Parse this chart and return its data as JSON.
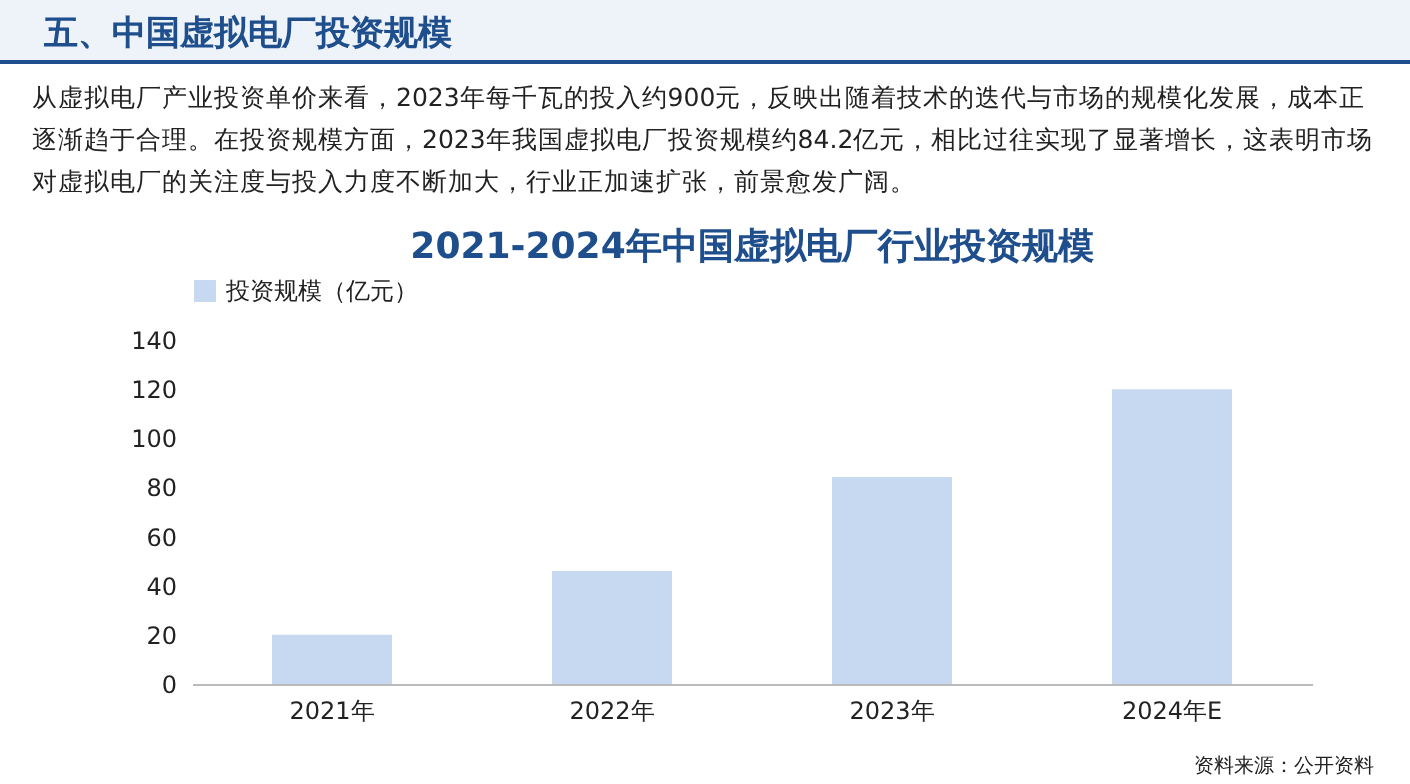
{
  "chart_data": {
    "type": "bar",
    "title": "2021-2024年中国虚拟电厂行业投资规模",
    "annotations": [
      "五、中国虚拟电厂投资规模",
      "从虚拟电厂产业投资单价来看，2023年每千瓦的投入约900元，反映出随着技术的迭代与市场的规模化发展，成本正逐渐趋于合理。在投资规模方面，2023年我国虚拟电厂投资规模约84.2亿元，相比过往实现了显著增长，这表明市场对虚拟电厂的关注度与投入力度不断加大，行业正加速扩张，前景愈发广阔。",
      "资料来源：公开资料"
    ],
    "categories": [
      "2021年",
      "2022年",
      "2023年",
      "2024年E"
    ],
    "series": [
      {
        "name": "投资规模（亿元）",
        "color": "#c6d9f1",
        "values": [
          20,
          46,
          84.2,
          120
        ]
      }
    ],
    "ylim": [
      0,
      140
    ],
    "yticks": [
      0,
      20,
      40,
      60,
      80,
      100,
      120,
      140
    ],
    "legend": "top"
  }
}
